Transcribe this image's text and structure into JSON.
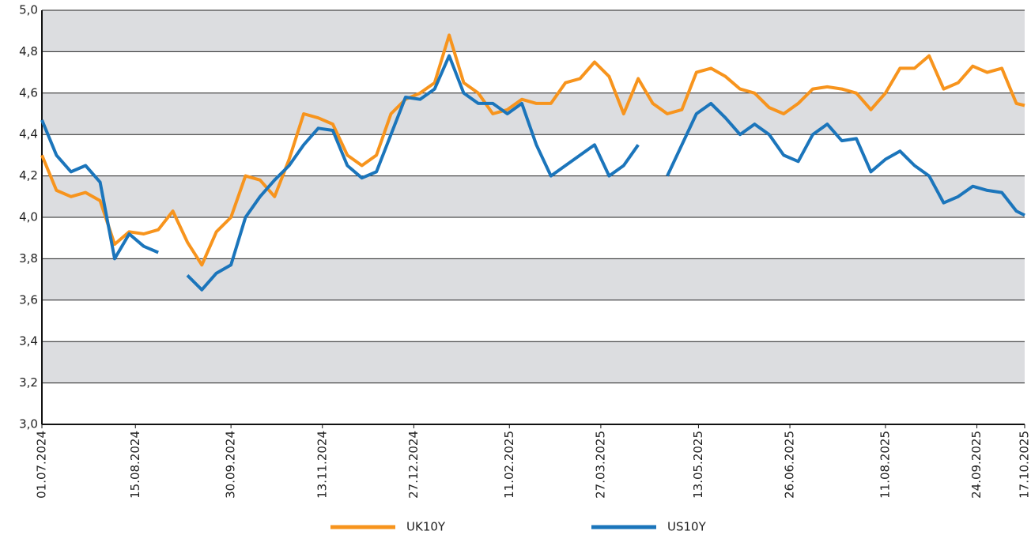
{
  "chart_data": {
    "type": "line",
    "x": [
      "01.07.2024",
      "08.07.2024",
      "15.07.2024",
      "22.07.2024",
      "29.07.2024",
      "05.08.2024",
      "12.08.2024",
      "19.08.2024",
      "26.08.2024",
      "02.09.2024",
      "09.09.2024",
      "16.09.2024",
      "23.09.2024",
      "30.09.2024",
      "07.10.2024",
      "14.10.2024",
      "21.10.2024",
      "28.10.2024",
      "04.11.2024",
      "11.11.2024",
      "18.11.2024",
      "25.11.2024",
      "02.12.2024",
      "09.12.2024",
      "16.12.2024",
      "23.12.2024",
      "30.12.2024",
      "06.01.2025",
      "13.01.2025",
      "20.01.2025",
      "27.01.2025",
      "03.02.2025",
      "10.02.2025",
      "17.02.2025",
      "24.02.2025",
      "03.03.2025",
      "10.03.2025",
      "17.03.2025",
      "24.03.2025",
      "31.03.2025",
      "07.04.2025",
      "14.04.2025",
      "21.04.2025",
      "28.04.2025",
      "05.05.2025",
      "12.05.2025",
      "19.05.2025",
      "26.05.2025",
      "02.06.2025",
      "09.06.2025",
      "16.06.2025",
      "23.06.2025",
      "30.06.2025",
      "07.07.2025",
      "14.07.2025",
      "21.07.2025",
      "28.07.2025",
      "04.08.2025",
      "11.08.2025",
      "18.08.2025",
      "25.08.2025",
      "01.09.2025",
      "08.09.2025",
      "15.09.2025",
      "22.09.2025",
      "29.09.2025",
      "06.10.2025",
      "13.10.2025",
      "17.10.2025"
    ],
    "series": [
      {
        "name": "UK10Y",
        "color": "#f7941d",
        "values": [
          4.3,
          4.13,
          4.1,
          4.12,
          4.08,
          3.87,
          3.93,
          3.92,
          3.94,
          4.03,
          3.88,
          3.77,
          3.93,
          4.0,
          4.2,
          4.18,
          4.1,
          4.28,
          4.5,
          4.48,
          4.45,
          4.3,
          4.25,
          4.3,
          4.5,
          4.57,
          4.6,
          4.65,
          4.88,
          4.65,
          4.6,
          4.5,
          4.52,
          4.57,
          4.55,
          4.55,
          4.65,
          4.67,
          4.75,
          4.68,
          4.5,
          4.67,
          4.55,
          4.5,
          4.52,
          4.7,
          4.72,
          4.68,
          4.62,
          4.6,
          4.53,
          4.5,
          4.55,
          4.62,
          4.63,
          4.62,
          4.6,
          4.52,
          4.6,
          4.72,
          4.72,
          4.78,
          4.62,
          4.65,
          4.73,
          4.7,
          4.72,
          4.55,
          4.54
        ]
      },
      {
        "name": "US10Y",
        "color": "#1b75bb",
        "values": [
          4.47,
          4.3,
          4.22,
          4.25,
          4.17,
          3.8,
          3.92,
          3.86,
          3.83,
          null,
          3.72,
          3.65,
          3.73,
          3.77,
          4.0,
          4.1,
          4.18,
          4.25,
          4.35,
          4.43,
          4.42,
          4.25,
          4.19,
          4.22,
          4.4,
          4.58,
          4.57,
          4.62,
          4.78,
          4.6,
          4.55,
          4.55,
          4.5,
          4.55,
          4.35,
          4.2,
          4.25,
          4.3,
          4.35,
          4.2,
          4.25,
          4.35,
          null,
          4.2,
          4.35,
          4.5,
          4.55,
          4.48,
          4.4,
          4.45,
          4.4,
          4.3,
          4.27,
          4.4,
          4.45,
          4.37,
          4.38,
          4.22,
          4.28,
          4.32,
          4.25,
          4.2,
          4.07,
          4.1,
          4.15,
          4.13,
          4.12,
          4.03,
          4.01
        ]
      }
    ],
    "xticks": [
      "01.07.2024",
      "15.08.2024",
      "30.09.2024",
      "13.11.2024",
      "27.12.2024",
      "11.02.2025",
      "27.03.2025",
      "13.05.2025",
      "26.06.2025",
      "11.08.2025",
      "24.09.2025",
      "17.10.2025"
    ],
    "ylim": [
      3.0,
      5.0
    ],
    "yticks": [
      {
        "value": 3.0,
        "label": "3,0"
      },
      {
        "value": 3.2,
        "label": "3,2"
      },
      {
        "value": 3.4,
        "label": "3,4"
      },
      {
        "value": 3.6,
        "label": "3,6"
      },
      {
        "value": 3.8,
        "label": "3,8"
      },
      {
        "value": 4.0,
        "label": "4,0"
      },
      {
        "value": 4.2,
        "label": "4,2"
      },
      {
        "value": 4.4,
        "label": "4,4"
      },
      {
        "value": 4.6,
        "label": "4,6"
      },
      {
        "value": 4.8,
        "label": "4,8"
      },
      {
        "value": 5.0,
        "label": "5,0"
      }
    ],
    "grid": true
  }
}
